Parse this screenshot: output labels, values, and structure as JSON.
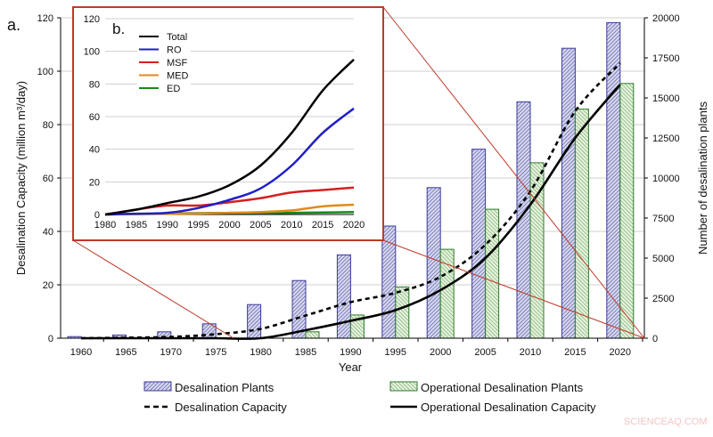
{
  "chart_data": [
    {
      "panel_label": "a.",
      "type": "bar+line",
      "xlabel": "Year",
      "ylabel_left": "Desalination Capacity (million m³/day)",
      "ylabel_right": "Number of desalination plants",
      "ylim_left": [
        0,
        120
      ],
      "ylim_right": [
        0,
        20000
      ],
      "yticks_left": [
        0,
        20,
        40,
        60,
        80,
        100,
        120
      ],
      "yticks_right": [
        0,
        2500,
        5000,
        7500,
        10000,
        12500,
        15000,
        17500,
        20000
      ],
      "categories": [
        "1960",
        "1965",
        "1970",
        "1975",
        "1980",
        "1985",
        "1990",
        "1995",
        "2000",
        "2005",
        "2010",
        "2015",
        "2020"
      ],
      "grid": "horizontal",
      "legend_position": "bottom",
      "series": [
        {
          "name": "Desalination Plants",
          "kind": "bar",
          "axis": "right",
          "color": "#3b3b9a",
          "fill": "#c9cbe6",
          "values": [
            100,
            200,
            400,
            900,
            2100,
            3600,
            5200,
            7000,
            9400,
            11800,
            14750,
            18100,
            19700
          ]
        },
        {
          "name": "Operational Desalination Plants",
          "kind": "bar",
          "axis": "right",
          "color": "#2f7a2f",
          "fill": "#d2e8c8",
          "values": [
            0,
            0,
            0,
            0,
            0,
            400,
            1450,
            3200,
            5550,
            8050,
            10950,
            14300,
            15900
          ]
        },
        {
          "name": "Desalination Capacity",
          "kind": "line",
          "style": "dashed",
          "axis": "left",
          "color": "#000000",
          "values": [
            0,
            0.2,
            0.5,
            1.5,
            3.5,
            8.5,
            13.5,
            17,
            23,
            35,
            55,
            85,
            103
          ]
        },
        {
          "name": "Operational Desalination Capacity",
          "kind": "line",
          "style": "solid",
          "axis": "left",
          "color": "#000000",
          "values": [
            0,
            0,
            0,
            0,
            0,
            3,
            6.5,
            10.5,
            18,
            30,
            50,
            75,
            95
          ]
        }
      ]
    },
    {
      "panel_label": "b.",
      "type": "line",
      "x": [
        1980,
        1985,
        1990,
        1995,
        2000,
        2005,
        2010,
        2015,
        2020
      ],
      "ylim": [
        0,
        120
      ],
      "yticks": [
        0,
        20,
        40,
        60,
        80,
        100,
        120
      ],
      "grid": "horizontal",
      "legend_position": "top-left",
      "series": [
        {
          "name": "Total",
          "color": "#000000",
          "values": [
            0,
            3,
            7,
            11,
            18,
            30,
            50,
            76,
            95
          ]
        },
        {
          "name": "RO",
          "color": "#1f1fc8",
          "values": [
            0,
            0.5,
            1,
            4,
            9,
            16,
            30,
            50,
            65
          ]
        },
        {
          "name": "MSF",
          "color": "#d42020",
          "values": [
            0,
            3,
            5.5,
            5.5,
            7.5,
            10,
            13.5,
            15,
            16.5
          ]
        },
        {
          "name": "MED",
          "color": "#e08a1a",
          "values": [
            0,
            0.2,
            0.4,
            0.6,
            1,
            1.5,
            2.5,
            5,
            6
          ]
        },
        {
          "name": "ED",
          "color": "#1a8a1a",
          "values": [
            0,
            0.3,
            0.6,
            0.8,
            1,
            1,
            1,
            1.2,
            1.5
          ]
        }
      ]
    }
  ],
  "watermark": "SCIENCEAQ.COM"
}
